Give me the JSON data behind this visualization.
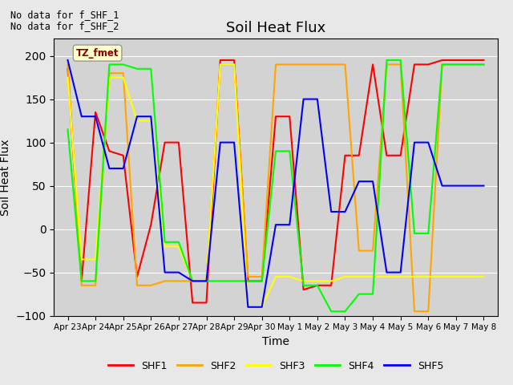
{
  "title": "Soil Heat Flux",
  "xlabel": "Time",
  "ylabel": "Soil Heat Flux",
  "ylim": [
    -100,
    220
  ],
  "yticks": [
    -100,
    -50,
    0,
    50,
    100,
    150,
    200
  ],
  "annotations": [
    "No data for f_SHF_1",
    "No data for f_SHF_2"
  ],
  "tz_label": "TZ_fmet",
  "series": {
    "SHF1": {
      "color": "red",
      "x": [
        0.0,
        0.5,
        1.0,
        1.5,
        2.0,
        2.5,
        3.0,
        3.5,
        4.0,
        4.5,
        5.0,
        5.5,
        6.0,
        6.5,
        7.0,
        7.5,
        8.0,
        8.5,
        9.0,
        9.5,
        10.0,
        10.5,
        11.0,
        11.5,
        12.0,
        12.5,
        13.0,
        13.5,
        14.0,
        14.5,
        15.0
      ],
      "values": [
        185,
        -60,
        135,
        90,
        85,
        -55,
        5,
        100,
        100,
        -85,
        -85,
        195,
        195,
        -60,
        -60,
        130,
        130,
        -70,
        -65,
        -65,
        85,
        85,
        190,
        85,
        85,
        190,
        190,
        195,
        195,
        195,
        195
      ]
    },
    "SHF2": {
      "color": "orange",
      "x": [
        0.0,
        0.5,
        1.0,
        1.5,
        2.0,
        2.5,
        3.0,
        3.5,
        4.0,
        4.5,
        5.0,
        5.5,
        6.0,
        6.5,
        7.0,
        7.5,
        8.0,
        8.5,
        9.0,
        9.5,
        10.0,
        10.5,
        11.0,
        11.5,
        12.0,
        12.5,
        13.0,
        13.5,
        14.0,
        14.5,
        15.0
      ],
      "values": [
        190,
        -65,
        -65,
        180,
        180,
        -65,
        -65,
        -60,
        -60,
        -60,
        -60,
        190,
        190,
        -55,
        -55,
        190,
        190,
        190,
        190,
        190,
        190,
        -25,
        -25,
        190,
        190,
        -95,
        -95,
        190,
        190,
        190,
        190
      ]
    },
    "SHF3": {
      "color": "yellow",
      "x": [
        0.0,
        0.5,
        1.0,
        1.5,
        2.0,
        2.5,
        3.0,
        3.5,
        4.0,
        4.5,
        5.0,
        5.5,
        6.0,
        6.5,
        7.0,
        7.5,
        8.0,
        8.5,
        9.0,
        9.5,
        10.0,
        10.5,
        11.0,
        11.5,
        12.0,
        12.5,
        13.0,
        13.5,
        14.0,
        14.5,
        15.0
      ],
      "values": [
        175,
        -35,
        -35,
        175,
        175,
        125,
        125,
        -20,
        -20,
        -60,
        -60,
        190,
        190,
        -90,
        -90,
        -55,
        -55,
        -60,
        -60,
        -60,
        -55,
        -55,
        -55,
        -55,
        -55,
        -55,
        -55,
        -55,
        -55,
        -55,
        -55
      ]
    },
    "SHF4": {
      "color": "lime",
      "x": [
        0.0,
        0.5,
        1.0,
        1.5,
        2.0,
        2.5,
        3.0,
        3.5,
        4.0,
        4.5,
        5.0,
        5.5,
        6.0,
        6.5,
        7.0,
        7.5,
        8.0,
        8.5,
        9.0,
        9.5,
        10.0,
        10.5,
        11.0,
        11.5,
        12.0,
        12.5,
        13.0,
        13.5,
        14.0,
        14.5,
        15.0
      ],
      "values": [
        115,
        -60,
        -60,
        190,
        190,
        185,
        185,
        -15,
        -15,
        -60,
        -60,
        -60,
        -60,
        -60,
        -60,
        90,
        90,
        -65,
        -65,
        -95,
        -95,
        -75,
        -75,
        195,
        195,
        -5,
        -5,
        190,
        190,
        190,
        190
      ]
    },
    "SHF5": {
      "color": "blue",
      "x": [
        0.0,
        0.5,
        1.0,
        1.5,
        2.0,
        2.5,
        3.0,
        3.5,
        4.0,
        4.5,
        5.0,
        5.5,
        6.0,
        6.5,
        7.0,
        7.5,
        8.0,
        8.5,
        9.0,
        9.5,
        10.0,
        10.5,
        11.0,
        11.5,
        12.0,
        12.5,
        13.0,
        13.5,
        14.0,
        14.5,
        15.0
      ],
      "values": [
        195,
        130,
        130,
        70,
        70,
        130,
        130,
        -50,
        -50,
        -60,
        -60,
        100,
        100,
        -90,
        -90,
        5,
        5,
        150,
        150,
        20,
        20,
        55,
        55,
        -50,
        -50,
        100,
        100,
        50,
        50,
        50,
        50
      ]
    }
  },
  "xtick_positions": [
    0,
    1,
    2,
    3,
    4,
    5,
    6,
    7,
    8,
    9,
    10,
    11,
    12,
    13,
    14,
    15
  ],
  "xtick_labels": [
    "Apr 23",
    "Apr 24",
    "Apr 25",
    "Apr 26",
    "Apr 27",
    "Apr 28",
    "Apr 29",
    "Apr 30",
    "May 1",
    "May 2",
    "May 3",
    "May 4",
    "May 5",
    "May 6",
    "May 7",
    "May 8"
  ],
  "xlim": [
    -0.5,
    15.5
  ],
  "background_color": "#e8e8e8",
  "plot_bg_color": "#d3d3d3"
}
